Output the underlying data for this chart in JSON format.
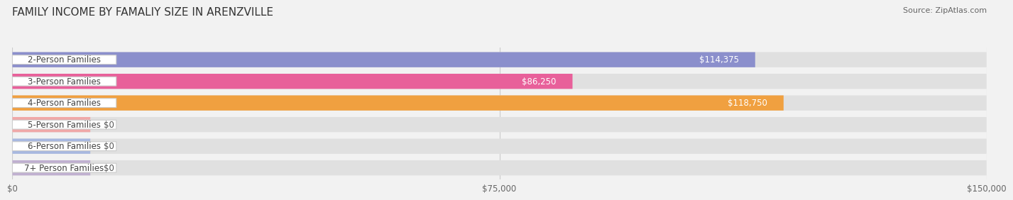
{
  "title": "FAMILY INCOME BY FAMALIY SIZE IN ARENZVILLE",
  "source": "Source: ZipAtlas.com",
  "categories": [
    "2-Person Families",
    "3-Person Families",
    "4-Person Families",
    "5-Person Families",
    "6-Person Families",
    "7+ Person Families"
  ],
  "values": [
    114375,
    86250,
    118750,
    0,
    0,
    0
  ],
  "bar_colors": [
    "#8b8fcc",
    "#e8609a",
    "#f0a040",
    "#f0a8a8",
    "#a8b8e0",
    "#c0b0d0"
  ],
  "xlim": [
    0,
    150000
  ],
  "xticks": [
    0,
    75000,
    150000
  ],
  "xtick_labels": [
    "$0",
    "$75,000",
    "$150,000"
  ],
  "background_color": "#f2f2f2",
  "bar_bg_color": "#e0e0e0",
  "title_fontsize": 11,
  "source_fontsize": 8,
  "label_fontsize": 8.5,
  "value_fontsize": 8.5,
  "zero_bar_width": 12000
}
